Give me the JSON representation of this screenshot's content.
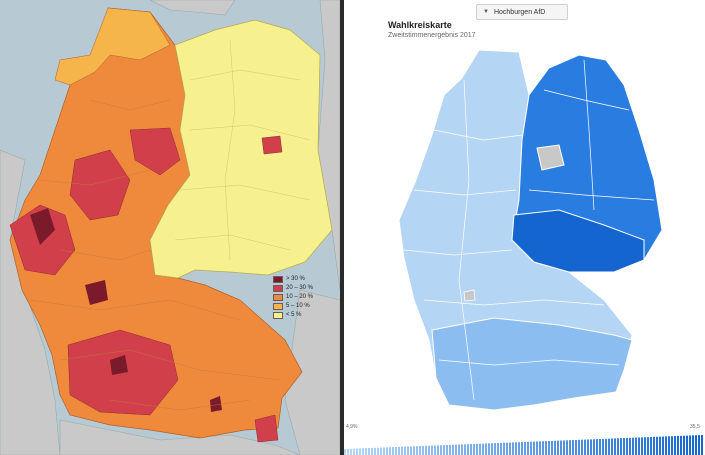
{
  "left_map": {
    "legend": [
      {
        "label": "> 30 %",
        "color": "#7a1a2a"
      },
      {
        "label": "20 – 30 %",
        "color": "#d1404a"
      },
      {
        "label": "10 – 20 %",
        "color": "#ef8a3c"
      },
      {
        "label": "5 – 10 %",
        "color": "#f5b54a"
      },
      {
        "label": "< 5 %",
        "color": "#f7f08f"
      }
    ],
    "colors": {
      "sea": "#b7cad4",
      "neighbor": "#c9c9c9"
    }
  },
  "right_map": {
    "dropdown_label": "Hochburgen AfD",
    "dropdown_icon": "chevron-down-icon",
    "title": "Wahlkreiskarte",
    "subtitle": "Zweitstimmenergebnis 2017",
    "scale_min_label": "4,9%",
    "scale_max_label": "35,5",
    "colors": {
      "light": "#b5d5f5",
      "mid": "#8cbdf0",
      "dark": "#2a7de0",
      "deep": "#1565d0"
    }
  }
}
